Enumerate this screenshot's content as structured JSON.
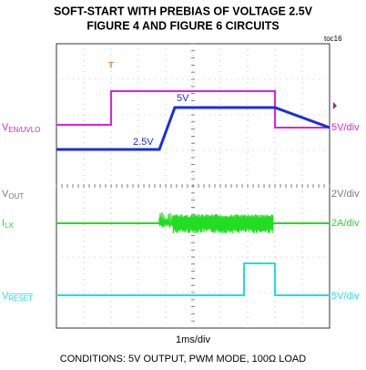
{
  "title": [
    "SOFT-START WITH PREBIAS OF VOLTAGE 2.5V",
    "FIGURE 4 AND FIGURE 6 CIRCUITS"
  ],
  "tag": "toc16",
  "channels": [
    {
      "name": "V",
      "sub": "EN/UVLO",
      "scale": "5V/div",
      "color": "#e020e0"
    },
    {
      "name": "V",
      "sub": "OUT",
      "scale": "2V/div",
      "color": "#777777"
    },
    {
      "name": "I",
      "sub": "LX",
      "scale": "2A/div",
      "color": "#22dd22"
    },
    {
      "name": "V",
      "sub": "RESET",
      "scale": "5V/div",
      "color": "#22dddd"
    }
  ],
  "annotations": [
    "5V",
    "2.5V"
  ],
  "timebase": "1ms/div",
  "conditions": "CONDITIONS: 5V OUTPUT, PWM MODE, 100Ω LOAD"
}
